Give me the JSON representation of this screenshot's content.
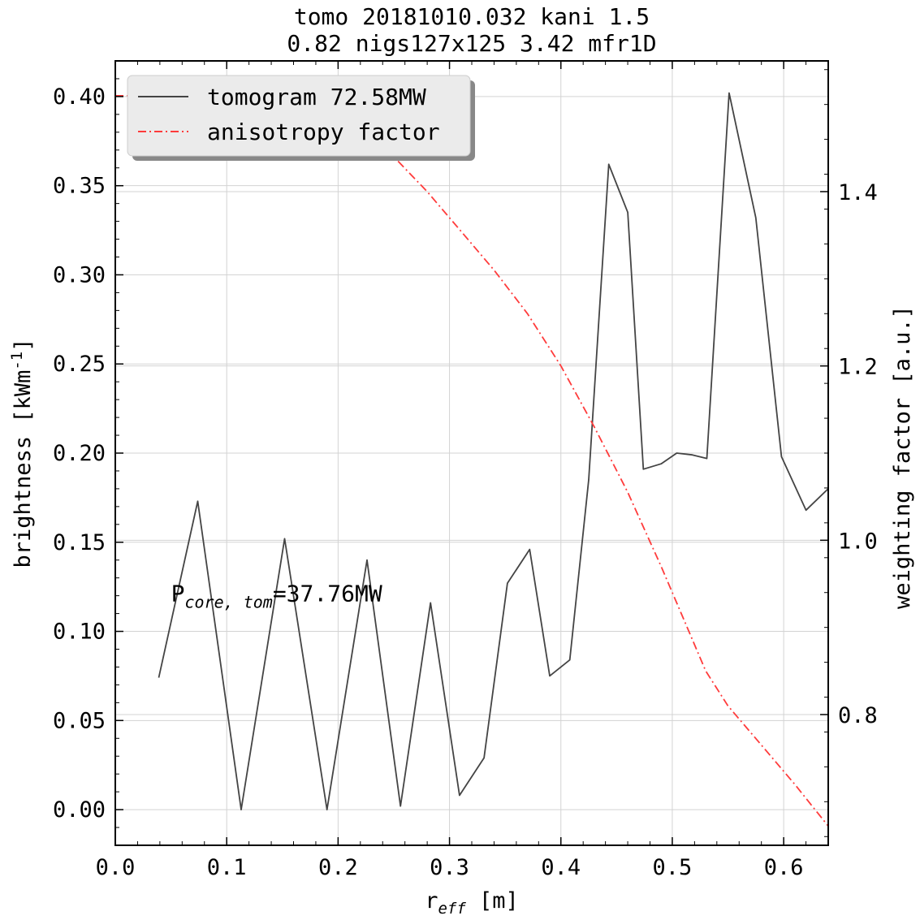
{
  "chart_data": {
    "type": "line",
    "title": "tomo 20181010.032 kani 1.5",
    "subtitle": "0.82  nigs127x125 3.42 mfr1D",
    "xlabel": {
      "base": "r",
      "sub": "eff",
      "rest": "  [m]"
    },
    "ylabel_left": {
      "text": "brightness [kWm",
      "sup": "-1",
      "close": "]"
    },
    "ylabel_right": "weighting factor [a.u.]",
    "xlim": [
      0.0,
      0.64
    ],
    "ylim_left": [
      -0.02,
      0.42
    ],
    "ylim_right": [
      0.65,
      1.55
    ],
    "grid": true,
    "legend_position": "top-left",
    "x_ticks": [
      0.0,
      0.1,
      0.2,
      0.3,
      0.4,
      0.5,
      0.6
    ],
    "x_tick_labels": [
      "0.0",
      "0.1",
      "0.2",
      "0.3",
      "0.4",
      "0.5",
      "0.6"
    ],
    "y_left_ticks": [
      0.0,
      0.05,
      0.1,
      0.15,
      0.2,
      0.25,
      0.3,
      0.35,
      0.4
    ],
    "y_left_tick_labels": [
      "0.00",
      "0.05",
      "0.10",
      "0.15",
      "0.20",
      "0.25",
      "0.30",
      "0.35",
      "0.40"
    ],
    "y_right_ticks": [
      0.8,
      1.0,
      1.2,
      1.4
    ],
    "y_right_tick_labels": [
      "0.8",
      "1.0",
      "1.2",
      "1.4"
    ],
    "annotation": {
      "base": "P",
      "sub": "core, tom",
      "rest": "=37.76MW"
    },
    "series": [
      {
        "name": "tomogram 72.58MW",
        "axis": "left",
        "color": "#444444",
        "style": "solid",
        "x": [
          0.039,
          0.074,
          0.113,
          0.152,
          0.19,
          0.226,
          0.256,
          0.283,
          0.309,
          0.331,
          0.352,
          0.372,
          0.39,
          0.408,
          0.425,
          0.443,
          0.46,
          0.474,
          0.49,
          0.504,
          0.518,
          0.531,
          0.551,
          0.575,
          0.598,
          0.62,
          0.64
        ],
        "y": [
          0.074,
          0.173,
          0.0,
          0.152,
          0.0,
          0.14,
          0.002,
          0.116,
          0.008,
          0.029,
          0.127,
          0.146,
          0.075,
          0.084,
          0.185,
          0.362,
          0.335,
          0.191,
          0.194,
          0.2,
          0.199,
          0.197,
          0.402,
          0.332,
          0.198,
          0.168,
          0.18
        ]
      },
      {
        "name": "anisotropy factor",
        "axis": "right",
        "color": "#ff3b3b",
        "style": "dashdot",
        "x": [
          0.0,
          0.19,
          0.22,
          0.25,
          0.28,
          0.31,
          0.34,
          0.37,
          0.4,
          0.43,
          0.46,
          0.49,
          0.51,
          0.53,
          0.55,
          0.58,
          0.61,
          0.64
        ],
        "y": [
          1.51,
          1.51,
          1.48,
          1.44,
          1.4,
          1.355,
          1.31,
          1.26,
          1.2,
          1.13,
          1.055,
          0.97,
          0.91,
          0.85,
          0.81,
          0.765,
          0.72,
          0.672
        ]
      }
    ]
  }
}
